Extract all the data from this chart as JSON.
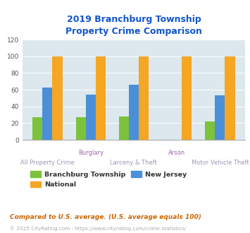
{
  "title": "2019 Branchburg Township\nProperty Crime Comparison",
  "categories": [
    "All Property Crime",
    "Burglary",
    "Larceny & Theft",
    "Arson",
    "Motor Vehicle Theft"
  ],
  "branchburg": [
    27,
    27,
    28,
    0,
    22
  ],
  "national": [
    100,
    100,
    100,
    100,
    100
  ],
  "new_jersey": [
    63,
    54,
    66,
    0,
    53
  ],
  "arson_has_branchburg": false,
  "arson_has_nj": false,
  "colors": {
    "branchburg": "#7cc23a",
    "national": "#f5a623",
    "new_jersey": "#4a90d9"
  },
  "ylim": [
    0,
    120
  ],
  "yticks": [
    0,
    20,
    40,
    60,
    80,
    100,
    120
  ],
  "title_color": "#1155cc",
  "label_color_row1": "#9966aa",
  "label_color_row2": "#9999bb",
  "background_color": "#dce8ed",
  "legend_order": [
    "branchburg",
    "national",
    "new_jersey"
  ],
  "legend_labels": {
    "branchburg": "Branchburg Township",
    "national": "National",
    "new_jersey": "New Jersey"
  },
  "footnote1": "Compared to U.S. average. (U.S. average equals 100)",
  "footnote2": "© 2025 CityRating.com - https://www.cityrating.com/crime-statistics/",
  "bar_width": 0.23,
  "row1_labels": [
    [
      1,
      "Burglary"
    ],
    [
      3,
      "Arson"
    ]
  ],
  "row2_labels": [
    [
      0,
      "All Property Crime"
    ],
    [
      2,
      "Larceny & Theft"
    ],
    [
      4,
      "Motor Vehicle Theft"
    ]
  ]
}
